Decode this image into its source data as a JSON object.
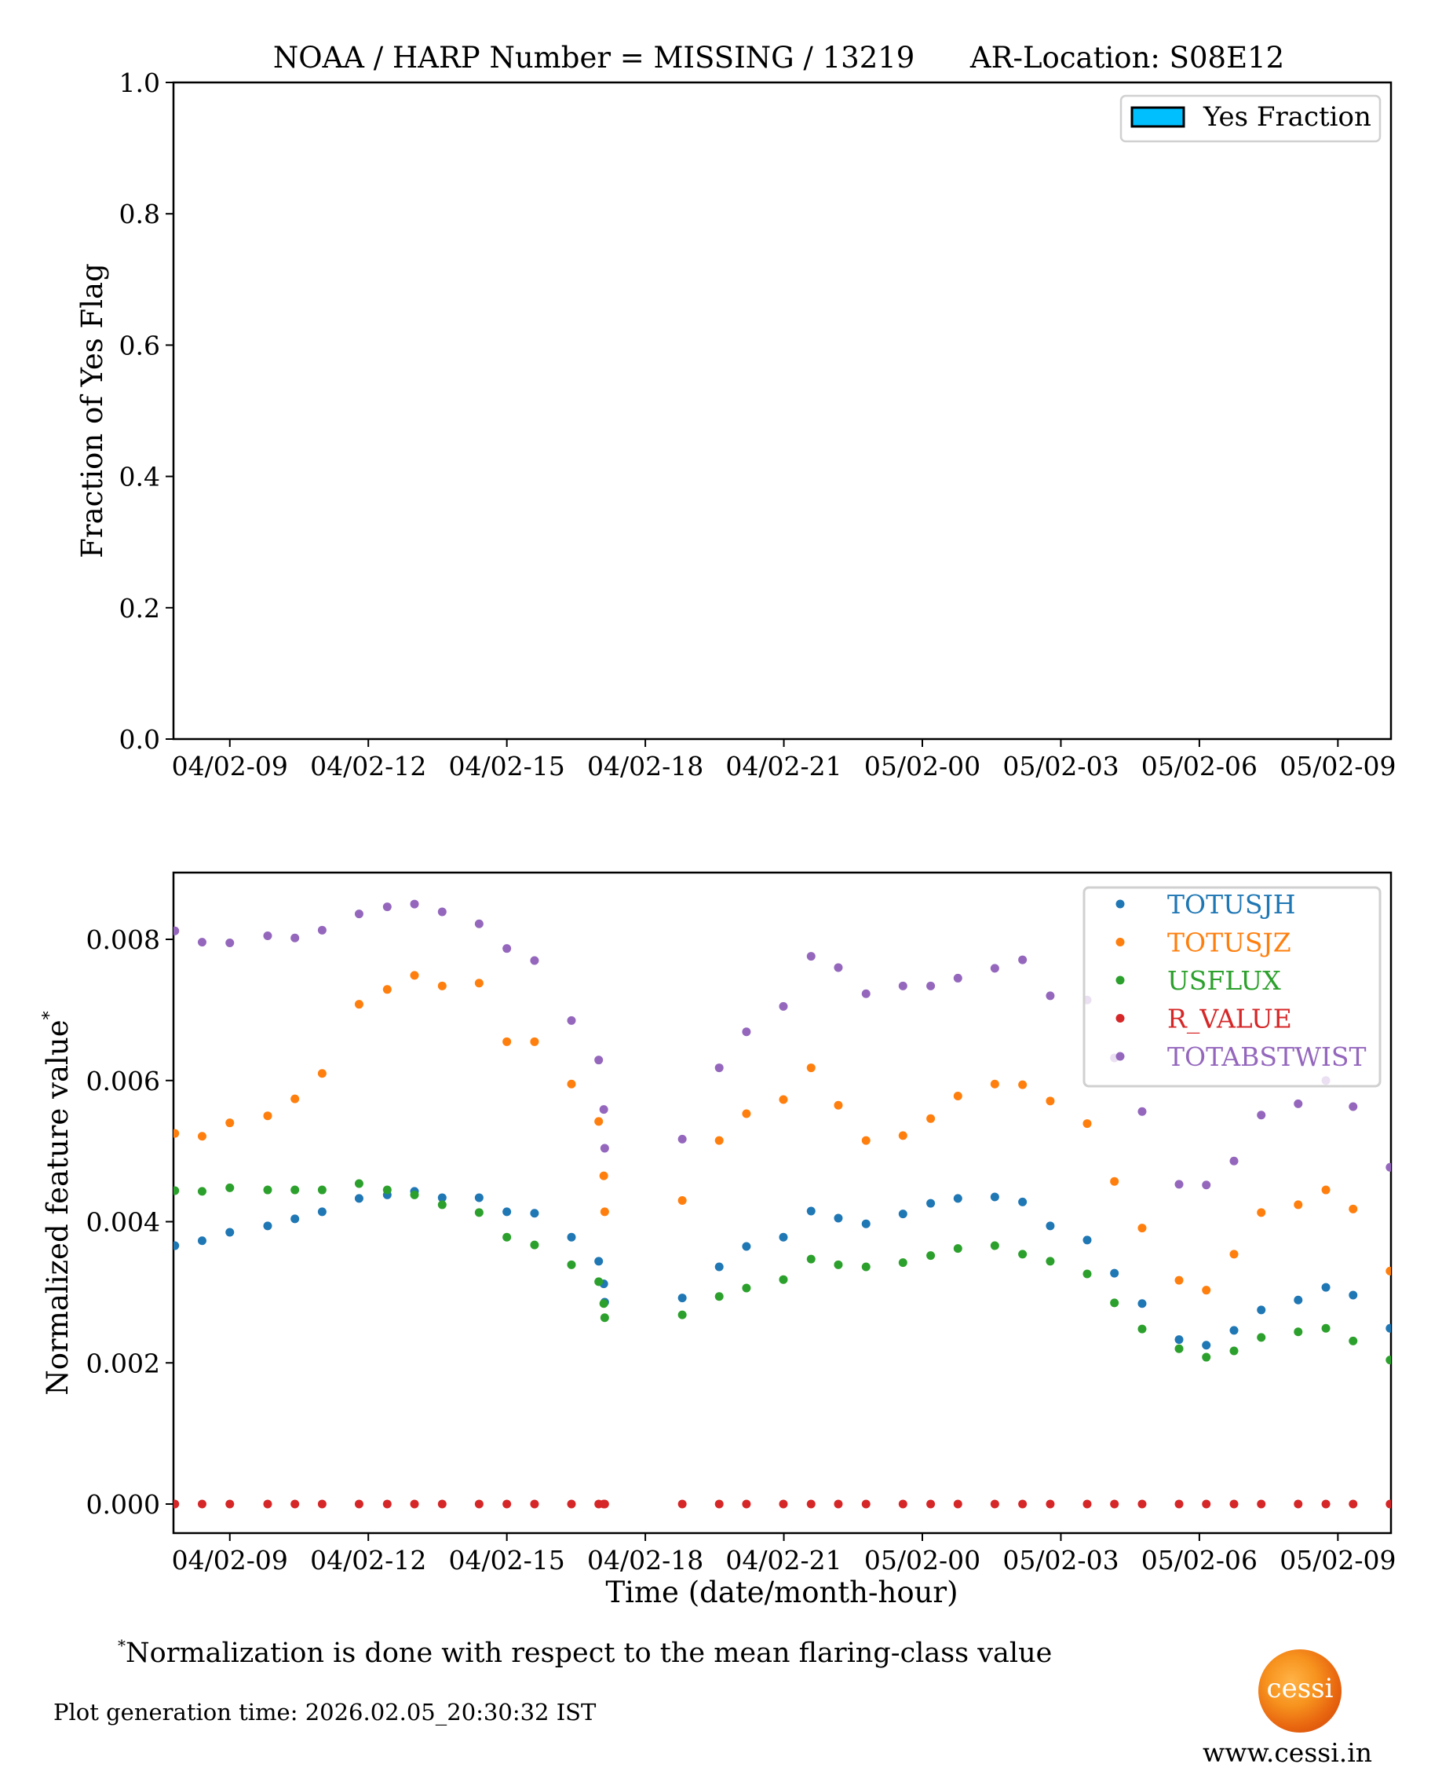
{
  "title": "NOAA / HARP Number = MISSING / 13219      AR-Location: S08E12",
  "footnote": {
    "marker": "*",
    "text": "Normalization is done with respect to the mean flaring-class value"
  },
  "generation_time": "Plot generation time: 2026.02.05_20:30:32 IST",
  "logo": {
    "text": "cessi",
    "url": "www.cessi.in"
  },
  "chart_data": [
    {
      "type": "bar",
      "title": "NOAA / HARP Number = MISSING / 13219      AR-Location: S08E12",
      "xlabel": "",
      "ylabel": "Fraction of Yes Flag",
      "ylim": [
        0.0,
        1.0
      ],
      "xlim_hours": [
        7.78,
        34.15
      ],
      "yticks": [
        "0.0",
        "0.2",
        "0.4",
        "0.6",
        "0.8",
        "1.0"
      ],
      "xtick_hours": [
        9,
        12,
        15,
        18,
        21,
        24,
        27,
        30,
        33
      ],
      "xtick_labels": [
        "04/02-09",
        "04/02-12",
        "04/02-15",
        "04/02-18",
        "04/02-21",
        "05/02-00",
        "05/02-03",
        "05/02-06",
        "05/02-09"
      ],
      "legend": {
        "position": "top-right",
        "entries": [
          {
            "label": "Yes Fraction",
            "color": "#00bfff"
          }
        ]
      },
      "series": [
        {
          "name": "Yes Fraction",
          "values": []
        }
      ]
    },
    {
      "type": "scatter",
      "xlabel": "Time (date/month-hour)",
      "ylabel": "Normalized feature value",
      "ylabel_marker": "*",
      "ylim": [
        -0.0004,
        0.009
      ],
      "xlim_hours": [
        7.78,
        34.15
      ],
      "yticks": [
        "0.000",
        "0.002",
        "0.004",
        "0.006",
        "0.008"
      ],
      "ytick_values": [
        0.0,
        0.002,
        0.004,
        0.006,
        0.008
      ],
      "xtick_hours": [
        9,
        12,
        15,
        18,
        21,
        24,
        27,
        30,
        33
      ],
      "xtick_labels": [
        "04/02-09",
        "04/02-12",
        "04/02-15",
        "04/02-18",
        "04/02-21",
        "05/02-00",
        "05/02-03",
        "05/02-06",
        "05/02-09"
      ],
      "legend": {
        "position": "top-right"
      },
      "x_hours": [
        7.81,
        8.4,
        9.0,
        9.82,
        10.41,
        11.0,
        11.8,
        12.41,
        13.0,
        13.6,
        14.4,
        15.0,
        15.6,
        16.4,
        16.99,
        17.1,
        17.12,
        18.8,
        19.6,
        20.19,
        20.99,
        21.59,
        22.18,
        22.78,
        23.58,
        24.18,
        24.77,
        25.57,
        26.17,
        26.77,
        27.57,
        28.16,
        28.76,
        29.56,
        30.15,
        30.75,
        31.34,
        32.14,
        32.74,
        33.33,
        34.13
      ],
      "series": [
        {
          "name": "TOTUSJH",
          "color": "#1f77b4",
          "values": [
            0.00366,
            0.00373,
            0.00385,
            0.00394,
            0.00404,
            0.00414,
            0.00433,
            0.00438,
            0.00443,
            0.00434,
            0.00434,
            0.00414,
            0.00412,
            0.00378,
            0.00344,
            0.00312,
            0.00286,
            0.00292,
            0.00336,
            0.00365,
            0.00378,
            0.00415,
            0.00405,
            0.00397,
            0.00411,
            0.00426,
            0.00433,
            0.00435,
            0.00428,
            0.00394,
            0.00374,
            0.00327,
            0.00284,
            0.00233,
            0.00225,
            0.00246,
            0.00275,
            0.00289,
            0.00307,
            0.00296,
            0.00249
          ]
        },
        {
          "name": "TOTUSJZ",
          "color": "#ff7f0e",
          "values": [
            0.00525,
            0.00521,
            0.0054,
            0.0055,
            0.00574,
            0.0061,
            0.00708,
            0.00729,
            0.00749,
            0.00734,
            0.00738,
            0.00655,
            0.00655,
            0.00595,
            0.00542,
            0.00465,
            0.00414,
            0.0043,
            0.00515,
            0.00553,
            0.00573,
            0.00618,
            0.00565,
            0.00515,
            0.00522,
            0.00546,
            0.00578,
            0.00595,
            0.00594,
            0.00571,
            0.00539,
            0.00457,
            0.00391,
            0.00317,
            0.00303,
            0.00354,
            0.00413,
            0.00424,
            0.00445,
            0.00418,
            0.0033
          ]
        },
        {
          "name": "USFLUX",
          "color": "#2ca02c",
          "values": [
            0.00444,
            0.00443,
            0.00448,
            0.00445,
            0.00445,
            0.00445,
            0.00454,
            0.00445,
            0.00438,
            0.00424,
            0.00413,
            0.00378,
            0.00367,
            0.00339,
            0.00315,
            0.00284,
            0.00264,
            0.00268,
            0.00294,
            0.00306,
            0.00318,
            0.00347,
            0.00339,
            0.00336,
            0.00342,
            0.00352,
            0.00362,
            0.00366,
            0.00354,
            0.00344,
            0.00326,
            0.00285,
            0.00248,
            0.0022,
            0.00208,
            0.00217,
            0.00236,
            0.00244,
            0.00249,
            0.00231,
            0.00204
          ]
        },
        {
          "name": "R_VALUE",
          "color": "#d62728",
          "values": [
            0,
            0,
            0,
            0,
            0,
            0,
            0,
            0,
            0,
            0,
            0,
            0,
            0,
            0,
            0,
            0,
            0,
            0,
            0,
            0,
            0,
            0,
            0,
            0,
            0,
            0,
            0,
            0,
            0,
            0,
            0,
            0,
            0,
            0,
            0,
            0,
            0,
            0,
            0,
            0,
            0
          ]
        },
        {
          "name": "TOTABSTWIST",
          "color": "#9467bd",
          "values": [
            0.00812,
            0.00796,
            0.00795,
            0.00805,
            0.00802,
            0.00813,
            0.00836,
            0.00846,
            0.0085,
            0.00839,
            0.00822,
            0.00787,
            0.0077,
            0.00685,
            0.00629,
            0.00559,
            0.00504,
            0.00517,
            0.00618,
            0.00669,
            0.00705,
            0.00776,
            0.0076,
            0.00723,
            0.00734,
            0.00734,
            0.00745,
            0.00759,
            0.00771,
            0.0072,
            0.00714,
            0.00632,
            0.00556,
            0.00453,
            0.00452,
            0.00486,
            0.00551,
            0.00567,
            0.006,
            0.00563,
            0.00477
          ]
        }
      ]
    }
  ]
}
